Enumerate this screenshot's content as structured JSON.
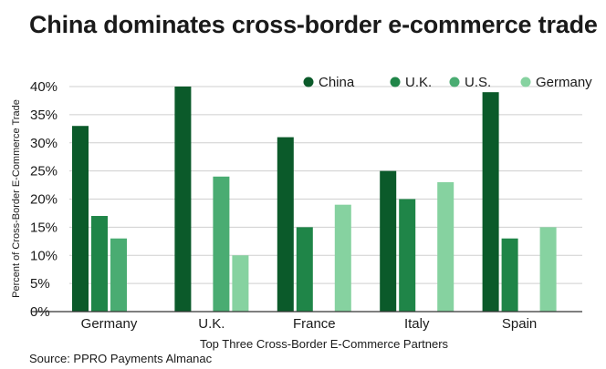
{
  "title": "China dominates cross-border e-commerce trade",
  "source": "Source: PPRO Payments Almanac",
  "chart_data": {
    "type": "bar",
    "title": "China dominates cross-border e-commerce trade",
    "xlabel": "Top Three Cross-Border E-Commerce Partners",
    "ylabel": "Percent of Cross-Border E-Commerce Trade",
    "categories": [
      "Germany",
      "U.K.",
      "France",
      "Italy",
      "Spain"
    ],
    "ylim": [
      0,
      40
    ],
    "yticks": [
      0,
      5,
      10,
      15,
      20,
      25,
      30,
      35,
      40
    ],
    "ytick_labels": [
      "0%",
      "5%",
      "10%",
      "15%",
      "20%",
      "25%",
      "30%",
      "35%",
      "40%"
    ],
    "legend_position": "top-right",
    "grid": true,
    "series": [
      {
        "name": "China",
        "color": "#0b5a2a",
        "values": [
          33,
          40,
          31,
          25,
          39
        ]
      },
      {
        "name": "U.K.",
        "color": "#1f8548",
        "values": [
          17,
          null,
          15,
          20,
          13
        ]
      },
      {
        "name": "U.S.",
        "color": "#4aac72",
        "values": [
          13,
          24,
          null,
          null,
          null
        ]
      },
      {
        "name": "Germany",
        "color": "#86d2a0",
        "values": [
          null,
          10,
          19,
          23,
          15
        ]
      }
    ]
  }
}
